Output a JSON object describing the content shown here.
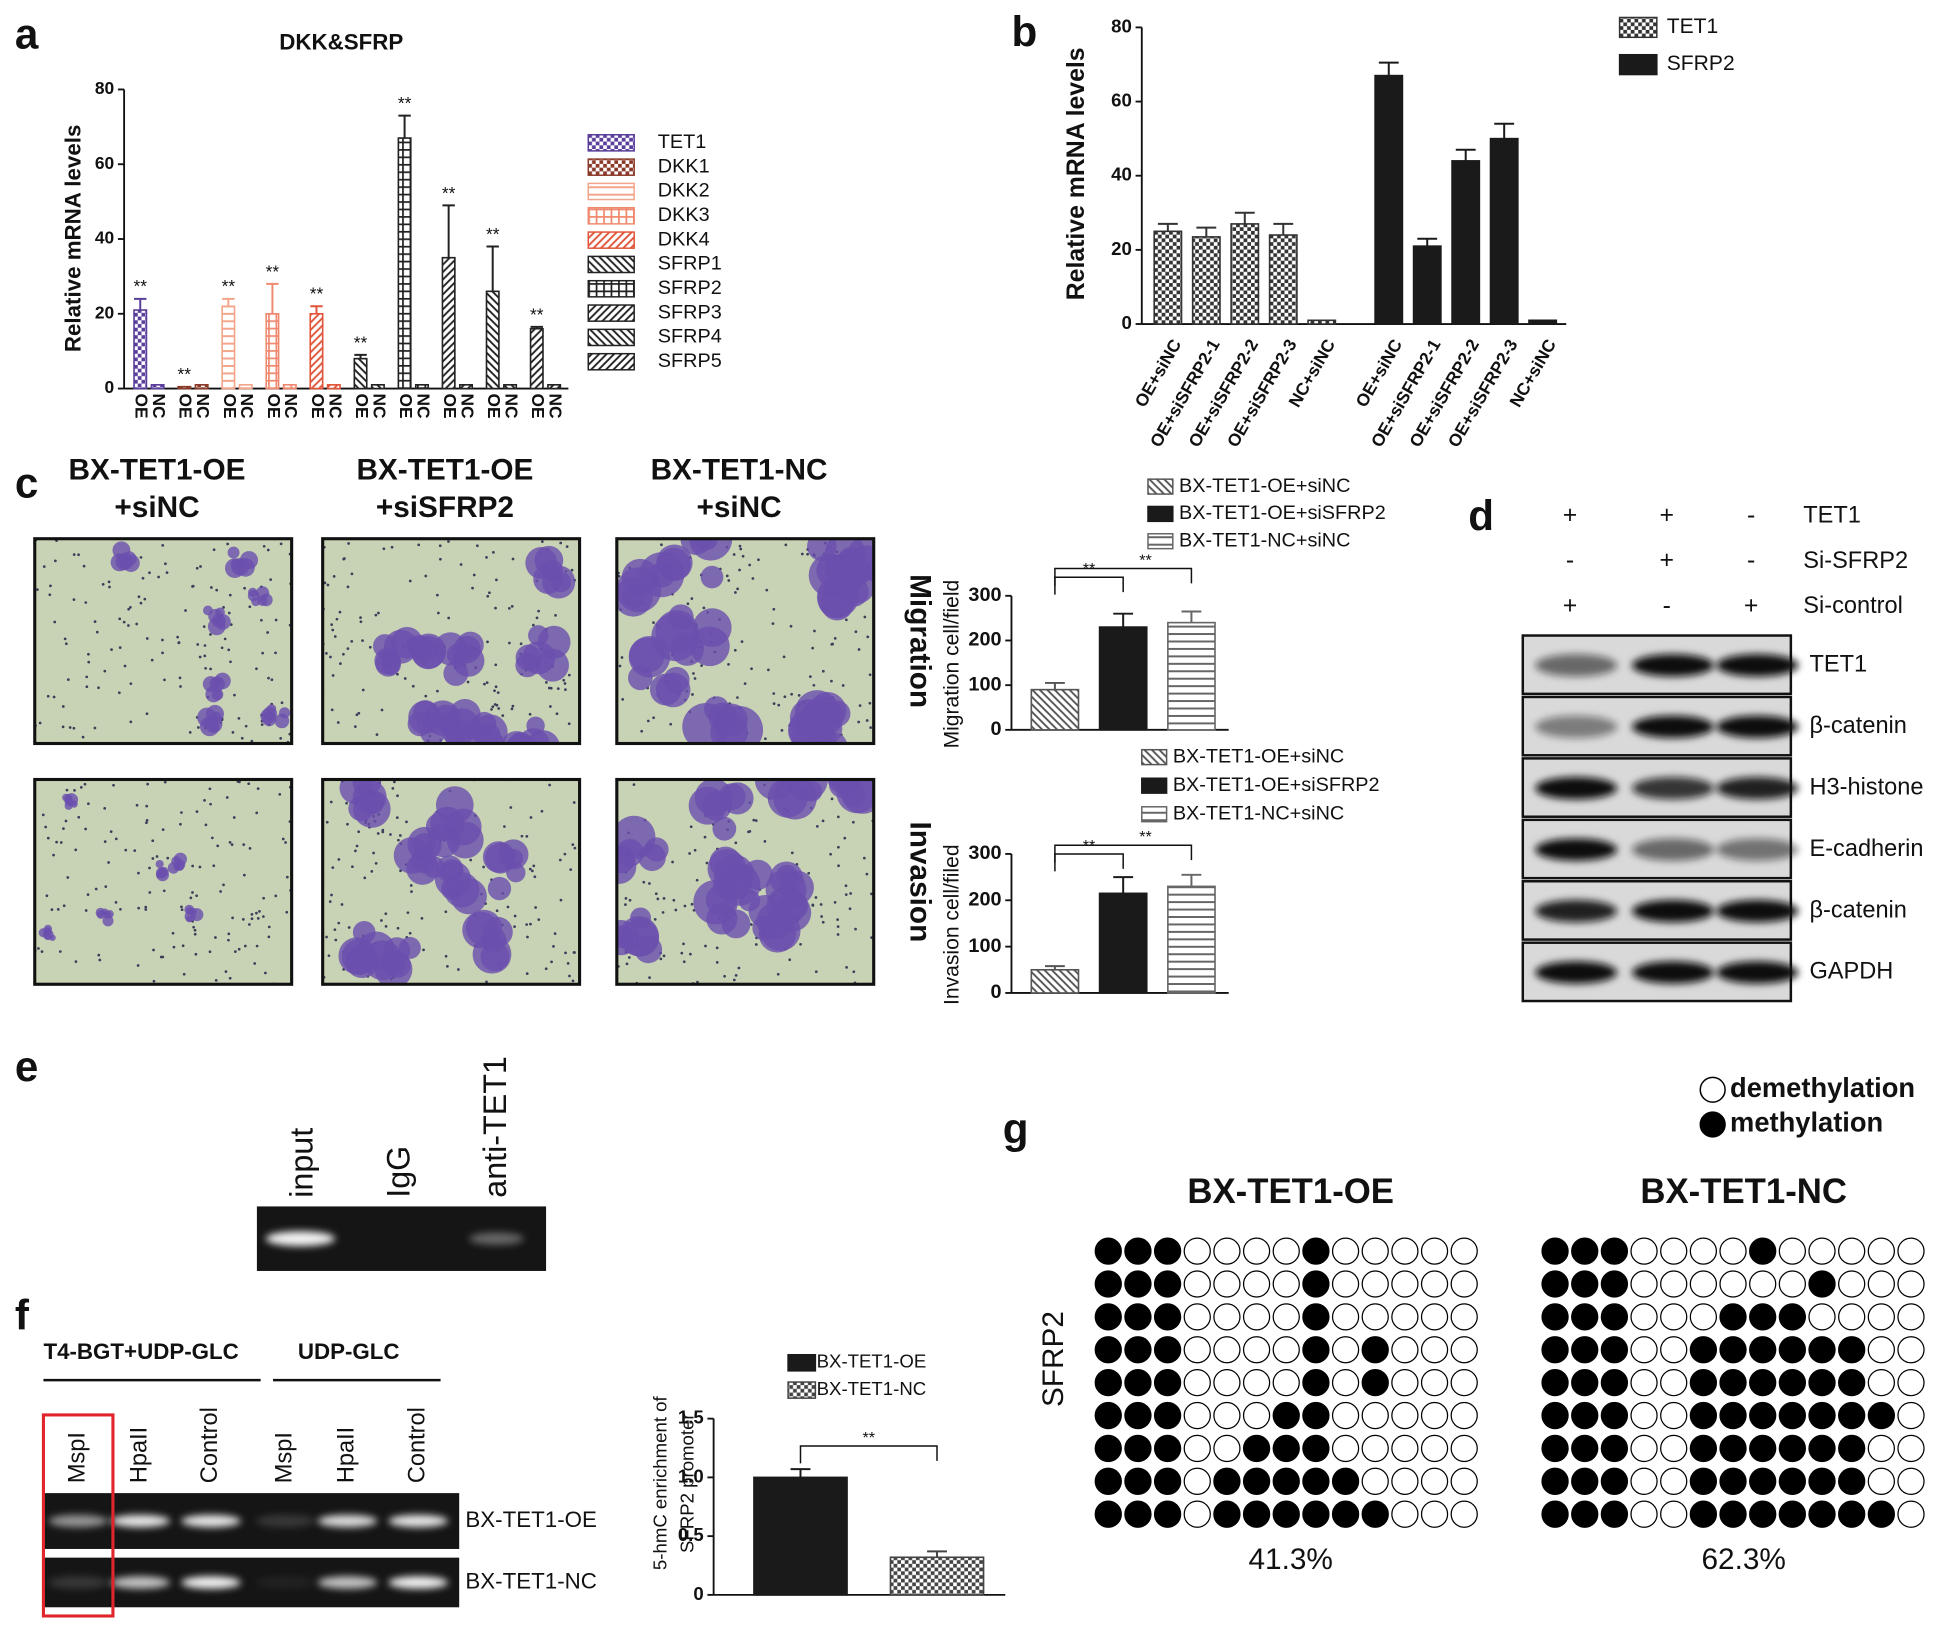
{
  "panel_labels": [
    "a",
    "b",
    "c",
    "d",
    "e",
    "f",
    "g"
  ],
  "chart_data": [
    {
      "type": "bar",
      "title": "DKK&SFRP",
      "ylabel": "Relative mRNA levels",
      "categories": [
        "OE",
        "NC",
        "OE",
        "NC",
        "OE",
        "NC",
        "OE",
        "NC",
        "OE",
        "NC",
        "OE",
        "NC",
        "OE",
        "NC",
        "OE",
        "NC",
        "OE",
        "NC",
        "OE",
        "NC"
      ],
      "ylim": [
        0,
        80
      ],
      "yticks": [
        0,
        20,
        40,
        60,
        80
      ],
      "series": [
        {
          "name": "TET1",
          "color": "#5a3e9b",
          "pattern": "checker",
          "significance": "**",
          "values": [
            21,
            1,
            null,
            null,
            null,
            null,
            null,
            null,
            null,
            null,
            null,
            null,
            null,
            null,
            null,
            null,
            null,
            null,
            null,
            null
          ],
          "errors": [
            3,
            null,
            null,
            null,
            null,
            null,
            null,
            null,
            null,
            null,
            null,
            null,
            null,
            null,
            null,
            null,
            null,
            null,
            null,
            null
          ]
        },
        {
          "name": "DKK1",
          "color": "#8b3a2a",
          "pattern": "checker",
          "significance": "**",
          "values": [
            null,
            null,
            0.5,
            1,
            null,
            null,
            null,
            null,
            null,
            null,
            null,
            null,
            null,
            null,
            null,
            null,
            null,
            null,
            null,
            null
          ],
          "errors": [
            null,
            null,
            null,
            null,
            null,
            null,
            null,
            null,
            null,
            null,
            null,
            null,
            null,
            null,
            null,
            null,
            null,
            null,
            null,
            null
          ]
        },
        {
          "name": "DKK2",
          "color": "#f2a58a",
          "pattern": "hlines",
          "significance": "**",
          "values": [
            null,
            null,
            null,
            null,
            22,
            1,
            null,
            null,
            null,
            null,
            null,
            null,
            null,
            null,
            null,
            null,
            null,
            null,
            null,
            null
          ],
          "errors": [
            null,
            null,
            null,
            null,
            2,
            null,
            null,
            null,
            null,
            null,
            null,
            null,
            null,
            null,
            null,
            null,
            null,
            null,
            null,
            null
          ]
        },
        {
          "name": "DKK3",
          "color": "#ef8a70",
          "pattern": "grid",
          "significance": "**",
          "values": [
            null,
            null,
            null,
            null,
            null,
            null,
            20,
            1,
            null,
            null,
            null,
            null,
            null,
            null,
            null,
            null,
            null,
            null,
            null,
            null
          ],
          "errors": [
            null,
            null,
            null,
            null,
            null,
            null,
            8,
            null,
            null,
            null,
            null,
            null,
            null,
            null,
            null,
            null,
            null,
            null,
            null,
            null
          ]
        },
        {
          "name": "DKK4",
          "color": "#e0553a",
          "pattern": "diag",
          "significance": "**",
          "values": [
            null,
            null,
            null,
            null,
            null,
            null,
            null,
            null,
            20,
            1,
            null,
            null,
            null,
            null,
            null,
            null,
            null,
            null,
            null,
            null
          ],
          "errors": [
            null,
            null,
            null,
            null,
            null,
            null,
            null,
            null,
            2,
            null,
            null,
            null,
            null,
            null,
            null,
            null,
            null,
            null,
            null,
            null
          ]
        },
        {
          "name": "SFRP1",
          "color": "#222222",
          "pattern": "back",
          "significance": "**",
          "values": [
            null,
            null,
            null,
            null,
            null,
            null,
            null,
            null,
            null,
            null,
            8,
            1,
            null,
            null,
            null,
            null,
            null,
            null,
            null,
            null
          ],
          "errors": [
            null,
            null,
            null,
            null,
            null,
            null,
            null,
            null,
            null,
            null,
            1,
            null,
            null,
            null,
            null,
            null,
            null,
            null,
            null,
            null
          ]
        },
        {
          "name": "SFRP2",
          "color": "#222222",
          "pattern": "grid",
          "significance": "**",
          "values": [
            null,
            null,
            null,
            null,
            null,
            null,
            null,
            null,
            null,
            null,
            null,
            null,
            67,
            1,
            null,
            null,
            null,
            null,
            null,
            null
          ],
          "errors": [
            null,
            null,
            null,
            null,
            null,
            null,
            null,
            null,
            null,
            null,
            null,
            null,
            6,
            null,
            null,
            null,
            null,
            null,
            null,
            null
          ]
        },
        {
          "name": "SFRP3",
          "color": "#222222",
          "pattern": "diag",
          "significance": "**",
          "values": [
            null,
            null,
            null,
            null,
            null,
            null,
            null,
            null,
            null,
            null,
            null,
            null,
            null,
            null,
            35,
            1,
            null,
            null,
            null,
            null
          ],
          "errors": [
            null,
            null,
            null,
            null,
            null,
            null,
            null,
            null,
            null,
            null,
            null,
            null,
            null,
            null,
            14,
            null,
            null,
            null,
            null,
            null
          ]
        },
        {
          "name": "SFRP4",
          "color": "#222222",
          "pattern": "back",
          "significance": "**",
          "values": [
            null,
            null,
            null,
            null,
            null,
            null,
            null,
            null,
            null,
            null,
            null,
            null,
            null,
            null,
            null,
            null,
            26,
            1,
            null,
            null
          ],
          "errors": [
            null,
            null,
            null,
            null,
            null,
            null,
            null,
            null,
            null,
            null,
            null,
            null,
            null,
            null,
            null,
            null,
            12,
            null,
            null,
            null
          ]
        },
        {
          "name": "SFRP5",
          "color": "#222222",
          "pattern": "diag",
          "significance": "**",
          "values": [
            null,
            null,
            null,
            null,
            null,
            null,
            null,
            null,
            null,
            null,
            null,
            null,
            null,
            null,
            null,
            null,
            null,
            null,
            16,
            1
          ],
          "errors": [
            null,
            null,
            null,
            null,
            null,
            null,
            null,
            null,
            null,
            null,
            null,
            null,
            null,
            null,
            null,
            null,
            null,
            null,
            0.5,
            null
          ]
        }
      ]
    },
    {
      "type": "bar",
      "ylabel": "Relative mRNA levels",
      "categories": [
        "OE+siNC",
        "OE+siSFRP2-1",
        "OE+siSFRP2-2",
        "OE+siSFRP2-3",
        "NC+siNC",
        "OE+siNC",
        "OE+siSFRP2-1",
        "OE+siSFRP2-2",
        "OE+siSFRP2-3",
        "NC+siNC"
      ],
      "ylim": [
        0,
        80
      ],
      "yticks": [
        0,
        20,
        40,
        60,
        80
      ],
      "series": [
        {
          "name": "TET1",
          "color": "#333333",
          "pattern": "checker",
          "values": [
            25,
            23.5,
            27,
            24,
            1,
            null,
            null,
            null,
            null,
            null
          ],
          "errors": [
            2,
            2.5,
            3,
            3,
            null,
            null,
            null,
            null,
            null,
            null
          ]
        },
        {
          "name": "SFRP2",
          "color": "#1a1a1a",
          "pattern": "solid",
          "values": [
            null,
            null,
            null,
            null,
            null,
            67,
            21,
            44,
            50,
            1
          ],
          "errors": [
            null,
            null,
            null,
            null,
            null,
            3.5,
            2,
            3,
            4,
            null
          ]
        }
      ]
    },
    {
      "type": "bar",
      "ylabel": "Migration cell/field",
      "ylim": [
        0,
        300
      ],
      "yticks": [
        0,
        100,
        200,
        300
      ],
      "significance": [
        "**",
        "**"
      ],
      "series": [
        {
          "name": "BX-TET1-OE+siNC",
          "color": "#555555",
          "pattern": "back",
          "values": [
            90
          ],
          "errors": [
            15
          ]
        },
        {
          "name": "BX-TET1-OE+siSFRP2",
          "color": "#1a1a1a",
          "pattern": "solid",
          "values": [
            230
          ],
          "errors": [
            30
          ]
        },
        {
          "name": "BX-TET1-NC+siNC",
          "color": "#666666",
          "pattern": "hlines",
          "values": [
            240
          ],
          "errors": [
            25
          ]
        }
      ]
    },
    {
      "type": "bar",
      "ylabel": "Invasion cell/filed",
      "ylim": [
        0,
        300
      ],
      "yticks": [
        0,
        100,
        200,
        300
      ],
      "significance": [
        "**",
        "**"
      ],
      "series": [
        {
          "name": "BX-TET1-OE+siNC",
          "color": "#555555",
          "pattern": "back",
          "values": [
            50
          ],
          "errors": [
            8
          ]
        },
        {
          "name": "BX-TET1-OE+siSFRP2",
          "color": "#1a1a1a",
          "pattern": "solid",
          "values": [
            215
          ],
          "errors": [
            35
          ]
        },
        {
          "name": "BX-TET1-NC+siNC",
          "color": "#666666",
          "pattern": "hlines",
          "values": [
            230
          ],
          "errors": [
            25
          ]
        }
      ]
    },
    {
      "type": "bar",
      "ylabel": [
        "5-hmC enrichment of",
        "SFRP2 promoter"
      ],
      "ylim": [
        0,
        1.5
      ],
      "yticks": [
        0,
        0.5,
        {
          "value": 1,
          "label": "1.0"
        },
        1.5
      ],
      "significance": [
        "**"
      ],
      "series": [
        {
          "name": "BX-TET1-OE",
          "color": "#1a1a1a",
          "pattern": "solid",
          "values": [
            1.0
          ],
          "errors": [
            0.07
          ]
        },
        {
          "name": "BX-TET1-NC",
          "color": "#444444",
          "pattern": "checker",
          "values": [
            0.32
          ],
          "errors": [
            0.05
          ]
        }
      ]
    }
  ],
  "panel_c": {
    "columns": [
      [
        "BX-TET1-OE",
        "+siNC"
      ],
      [
        "BX-TET1-OE",
        "+siSFRP2"
      ],
      [
        "BX-TET1-NC",
        "+siNC"
      ]
    ],
    "rows": [
      "Migration",
      "Invasion"
    ]
  },
  "panel_d": {
    "conditions": [
      {
        "name": "TET1",
        "signs": [
          "+",
          "+",
          "-"
        ]
      },
      {
        "name": "Si-SFRP2",
        "signs": [
          "-",
          "+",
          "-"
        ]
      },
      {
        "name": "Si-control",
        "signs": [
          "+",
          "-",
          "+"
        ]
      }
    ],
    "bands": [
      "TET1",
      "β-catenin",
      "H3-histone",
      "E-cadherin",
      "β-catenin",
      "GAPDH"
    ]
  },
  "panel_e": {
    "lanes": [
      "input",
      "IgG",
      "anti-TET1"
    ]
  },
  "panel_f": {
    "groups": [
      "T4-BGT+UDP-GLC",
      "UDP-GLC"
    ],
    "lanes": [
      "MspI",
      "HpaII",
      "Control",
      "MspI",
      "HpaII",
      "Control"
    ],
    "rows": [
      "BX-TET1-OE",
      "BX-TET1-NC"
    ]
  },
  "panel_g": {
    "legend": [
      "demethylation",
      "methylation"
    ],
    "row_label": "SFRP2",
    "groups": [
      {
        "title": "BX-TET1-OE",
        "percent": "41.3%",
        "rows": [
          [
            1,
            1,
            1,
            0,
            0,
            0,
            0,
            1,
            0,
            0,
            0,
            0,
            0
          ],
          [
            1,
            1,
            1,
            0,
            0,
            0,
            0,
            1,
            0,
            0,
            0,
            0,
            0
          ],
          [
            1,
            1,
            1,
            0,
            0,
            0,
            0,
            1,
            0,
            0,
            0,
            0,
            0
          ],
          [
            1,
            1,
            1,
            0,
            0,
            0,
            0,
            1,
            0,
            1,
            0,
            0,
            0
          ],
          [
            1,
            1,
            1,
            0,
            0,
            0,
            0,
            1,
            0,
            1,
            0,
            0,
            0
          ],
          [
            1,
            1,
            1,
            0,
            0,
            0,
            1,
            1,
            0,
            0,
            0,
            0,
            0
          ],
          [
            1,
            1,
            1,
            0,
            0,
            1,
            1,
            1,
            0,
            0,
            0,
            0,
            0
          ],
          [
            1,
            1,
            1,
            0,
            1,
            1,
            1,
            1,
            1,
            0,
            0,
            0,
            0
          ],
          [
            1,
            1,
            1,
            0,
            1,
            1,
            1,
            1,
            1,
            1,
            0,
            0,
            0
          ]
        ]
      },
      {
        "title": "BX-TET1-NC",
        "percent": "62.3%",
        "rows": [
          [
            1,
            1,
            1,
            0,
            0,
            0,
            0,
            1,
            0,
            0,
            0,
            0,
            0
          ],
          [
            1,
            1,
            1,
            0,
            0,
            0,
            0,
            0,
            0,
            1,
            0,
            0,
            0
          ],
          [
            1,
            1,
            1,
            0,
            0,
            0,
            1,
            1,
            1,
            0,
            0,
            0,
            0
          ],
          [
            1,
            1,
            1,
            0,
            0,
            1,
            1,
            1,
            1,
            1,
            1,
            0,
            0
          ],
          [
            1,
            1,
            1,
            0,
            0,
            1,
            1,
            1,
            1,
            1,
            1,
            0,
            0
          ],
          [
            1,
            1,
            1,
            0,
            0,
            1,
            1,
            1,
            1,
            1,
            1,
            1,
            0
          ],
          [
            1,
            1,
            1,
            0,
            0,
            1,
            1,
            1,
            1,
            1,
            1,
            0,
            0
          ],
          [
            1,
            1,
            1,
            0,
            0,
            1,
            1,
            1,
            1,
            1,
            1,
            0,
            0
          ],
          [
            1,
            1,
            1,
            0,
            0,
            1,
            1,
            1,
            1,
            1,
            1,
            1,
            0
          ]
        ]
      }
    ]
  }
}
